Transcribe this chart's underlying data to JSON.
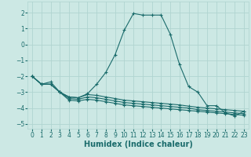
{
  "xlabel": "Humidex (Indice chaleur)",
  "bg_color": "#cce8e4",
  "grid_color": "#b0d4d0",
  "line_color": "#1a6b6b",
  "xlim": [
    -0.5,
    23.5
  ],
  "ylim": [
    -5.3,
    2.7
  ],
  "xticks": [
    0,
    1,
    2,
    3,
    4,
    5,
    6,
    7,
    8,
    9,
    10,
    11,
    12,
    13,
    14,
    15,
    16,
    17,
    18,
    19,
    20,
    21,
    22,
    23
  ],
  "yticks": [
    -5,
    -4,
    -3,
    -2,
    -1,
    0,
    1,
    2
  ],
  "series1_y": [
    -2.0,
    -2.5,
    -2.35,
    -3.0,
    -3.3,
    -3.35,
    -3.1,
    -2.5,
    -1.75,
    -0.65,
    0.9,
    1.95,
    1.85,
    1.85,
    1.85,
    0.65,
    -1.25,
    -2.65,
    -3.0,
    -3.85,
    -3.85,
    -4.3,
    -4.5,
    -4.2
  ],
  "series2_y": [
    -2.0,
    -2.5,
    -2.5,
    -3.0,
    -3.3,
    -3.35,
    -3.15,
    -3.2,
    -3.3,
    -3.4,
    -3.5,
    -3.55,
    -3.6,
    -3.65,
    -3.7,
    -3.75,
    -3.8,
    -3.88,
    -3.95,
    -4.0,
    -4.05,
    -4.1,
    -4.15,
    -4.2
  ],
  "series3_y": [
    -2.0,
    -2.5,
    -2.5,
    -3.0,
    -3.4,
    -3.45,
    -3.3,
    -3.35,
    -3.45,
    -3.55,
    -3.65,
    -3.7,
    -3.75,
    -3.8,
    -3.85,
    -3.9,
    -3.95,
    -4.0,
    -4.1,
    -4.15,
    -4.2,
    -4.25,
    -4.3,
    -4.35
  ],
  "series4_y": [
    -2.0,
    -2.5,
    -2.5,
    -3.0,
    -3.5,
    -3.55,
    -3.45,
    -3.5,
    -3.6,
    -3.7,
    -3.8,
    -3.85,
    -3.9,
    -3.95,
    -4.0,
    -4.05,
    -4.1,
    -4.15,
    -4.2,
    -4.25,
    -4.3,
    -4.35,
    -4.4,
    -4.45
  ],
  "marker_size": 2.5,
  "linewidth": 0.8,
  "xlabel_fontsize": 7,
  "tick_fontsize": 5.5
}
